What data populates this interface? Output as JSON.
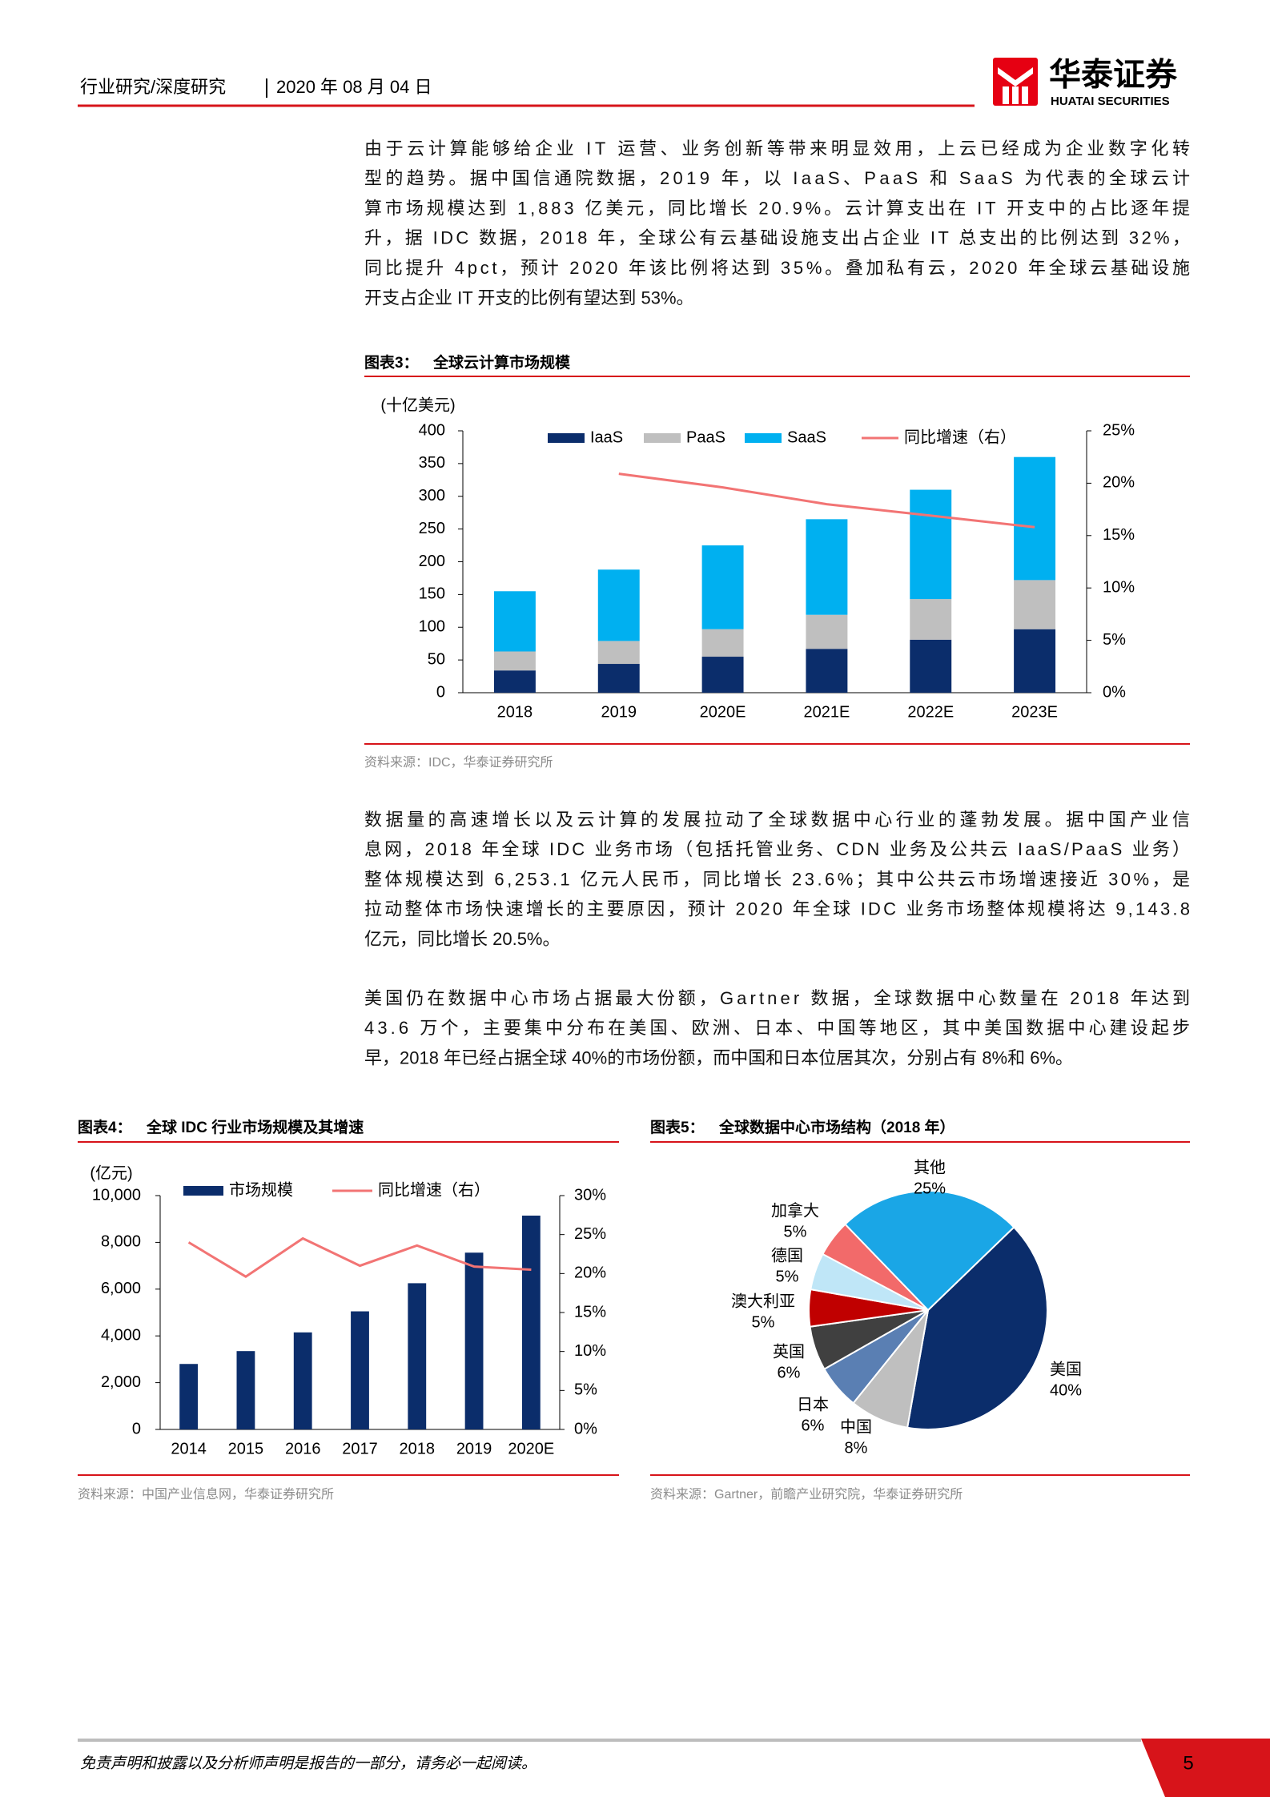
{
  "header": {
    "section": "行业研究/深度研究",
    "date": "2020 年 08 月 04 日",
    "logo_cn": "华泰证券",
    "logo_en": "HUATAI SECURITIES"
  },
  "paragraphs": [
    [
      "由于云计算能够给企业 IT 运营、业务创新等带来明显效用，上云已经成为企业数字化转",
      "型的趋势。据中国信通院数据，2019 年，以 IaaS、PaaS 和 SaaS 为代表的全球云计",
      "算市场规模达到 1,883 亿美元，同比增长 20.9%。云计算支出在 IT 开支中的占比逐年提",
      "升，据 IDC 数据，2018 年，全球公有云基础设施支出占企业 IT 总支出的比例达到 32%，",
      "同比提升 4pct，预计 2020 年该比例将达到 35%。叠加私有云，2020 年全球云基础设施",
      "开支占企业 IT 开支的比例有望达到 53%。"
    ],
    [
      "数据量的高速增长以及云计算的发展拉动了全球数据中心行业的蓬勃发展。据中国产业信",
      "息网，2018 年全球 IDC 业务市场（包括托管业务、CDN 业务及公共云 IaaS/PaaS 业务）",
      "整体规模达到 6,253.1 亿元人民币，同比增长 23.6%；其中公共云市场增速接近 30%，是",
      "拉动整体市场快速增长的主要原因，预计 2020 年全球 IDC 业务市场整体规模将达 9,143.8",
      "亿元，同比增长 20.5%。"
    ],
    [
      "美国仍在数据中心市场占据最大份额，Gartner 数据，全球数据中心数量在 2018 年达到",
      "43.6 万个，主要集中分布在美国、欧洲、日本、中国等地区，其中美国数据中心建设起步",
      "早，2018 年已经占据全球 40%的市场份额，而中国和日本位居其次，分别占有 8%和 6%。"
    ]
  ],
  "chart_data": [
    {
      "type": "bar",
      "stacked": true,
      "figure_label": "图表3：",
      "title": "全球云计算市场规模",
      "unit": "(十亿美元)",
      "source": "资料来源：IDC，华泰证券研究所",
      "categories": [
        "2018",
        "2019",
        "2020E",
        "2021E",
        "2022E",
        "2023E"
      ],
      "series": [
        {
          "name": "IaaS",
          "color": "#0b2d6b",
          "values": [
            34,
            44,
            55,
            67,
            81,
            97
          ]
        },
        {
          "name": "PaaS",
          "color": "#bfbfbf",
          "values": [
            29,
            35,
            42,
            52,
            62,
            75
          ]
        },
        {
          "name": "SaaS",
          "color": "#00b0f0",
          "values": [
            92,
            109,
            128,
            146,
            167,
            188
          ]
        },
        {
          "name": "同比增速（右）",
          "type": "line",
          "axis": "y2",
          "color": "#f27474",
          "values": [
            null,
            20.9,
            19.6,
            18.0,
            16.9,
            15.8
          ]
        }
      ],
      "ylim": [
        0,
        400
      ],
      "yticks": [
        0,
        50,
        100,
        150,
        200,
        250,
        300,
        350,
        400
      ],
      "y2lim": [
        0,
        25
      ],
      "y2ticks": [
        {
          "value": 0,
          "label": "0%"
        },
        {
          "value": 5,
          "label": "5%"
        },
        {
          "value": 10,
          "label": "10%"
        },
        {
          "value": 15,
          "label": "15%"
        },
        {
          "value": 20,
          "label": "20%"
        },
        {
          "value": 25,
          "label": "25%"
        }
      ],
      "grid": false
    },
    {
      "type": "bar",
      "stacked": false,
      "figure_label": "图表4：",
      "title": "全球 IDC 行业市场规模及其增速",
      "unit": "(亿元)",
      "source": "资料来源：中国产业信息网，华泰证券研究所",
      "categories": [
        "2014",
        "2015",
        "2016",
        "2017",
        "2018",
        "2019",
        "2020E"
      ],
      "series": [
        {
          "name": "市场规模",
          "color": "#0b2d6b",
          "values": [
            2800,
            3350,
            4150,
            5050,
            6253.1,
            7560,
            9143.8
          ]
        },
        {
          "name": "同比增速（右）",
          "type": "line",
          "axis": "y2",
          "color": "#f27474",
          "values": [
            24.0,
            19.6,
            24.5,
            21.0,
            23.6,
            20.9,
            20.5
          ]
        }
      ],
      "ylim": [
        0,
        10000
      ],
      "yticks": [
        0,
        {
          "value": 2000,
          "label": "2,000"
        },
        {
          "value": 4000,
          "label": "4,000"
        },
        {
          "value": 6000,
          "label": "6,000"
        },
        {
          "value": 8000,
          "label": "8,000"
        },
        {
          "value": 10000,
          "label": "10,000"
        }
      ],
      "y2lim": [
        0,
        30
      ],
      "y2ticks": [
        {
          "value": 0,
          "label": "0%"
        },
        {
          "value": 5,
          "label": "5%"
        },
        {
          "value": 10,
          "label": "10%"
        },
        {
          "value": 15,
          "label": "15%"
        },
        {
          "value": 20,
          "label": "20%"
        },
        {
          "value": 25,
          "label": "25%"
        },
        {
          "value": 30,
          "label": "30%"
        }
      ],
      "grid": false
    },
    {
      "type": "pie",
      "figure_label": "图表5：",
      "title": "全球数据中心市场结构（2018 年）",
      "source": "资料来源：Gartner，前瞻产业研究院，华泰证券研究所",
      "categories": [
        "美国",
        "中国",
        "日本",
        "英国",
        "澳大利亚",
        "德国",
        "加拿大",
        "其他"
      ],
      "values": [
        40,
        8,
        6,
        6,
        5,
        5,
        5,
        25
      ],
      "value_labels": [
        "40%",
        "8%",
        "6%",
        "6%",
        "5%",
        "5%",
        "5%",
        "25%"
      ],
      "colors": [
        "#0b2d6b",
        "#bfbfbf",
        "#5a7fb3",
        "#404040",
        "#c00000",
        "#bfe6f7",
        "#f26a6a",
        "#1aa6e6"
      ]
    }
  ],
  "footer": {
    "disclaimer": "免责声明和披露以及分析师声明是报告的一部分，请务必一起阅读。",
    "page": "5"
  }
}
